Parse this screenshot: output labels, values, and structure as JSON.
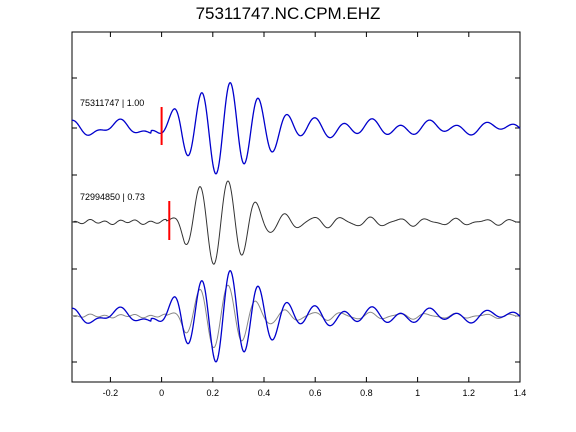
{
  "chart_data": {
    "type": "line",
    "title": "75311747.NC.CPM.EHZ",
    "xlabel": "",
    "ylabel": "",
    "xlim": [
      -0.35,
      1.4
    ],
    "xticks": [
      "-0.2",
      "0",
      "0.2",
      "0.4",
      "0.6",
      "0.8",
      "1",
      "1.2",
      "1.4"
    ],
    "xtick_values": [
      -0.2,
      0,
      0.2,
      0.4,
      0.6,
      0.8,
      1.0,
      1.2,
      1.4
    ],
    "grid": false,
    "colors": {
      "primary": "#0000cc",
      "secondary": "#333333",
      "overlay": "#888888",
      "pick": "#ff0000"
    },
    "series": [
      {
        "name": "75311747 | 1.00",
        "label": "75311747 | 1.00",
        "color": "#0000cc",
        "pick_time": 0.0
      },
      {
        "name": "72994850 | 0.73",
        "label": "72994850 | 0.73",
        "color": "#333333",
        "pick_time": 0.03
      },
      {
        "name": "",
        "label": "",
        "color": "#0000cc",
        "overlay_color": "#888888"
      }
    ]
  }
}
